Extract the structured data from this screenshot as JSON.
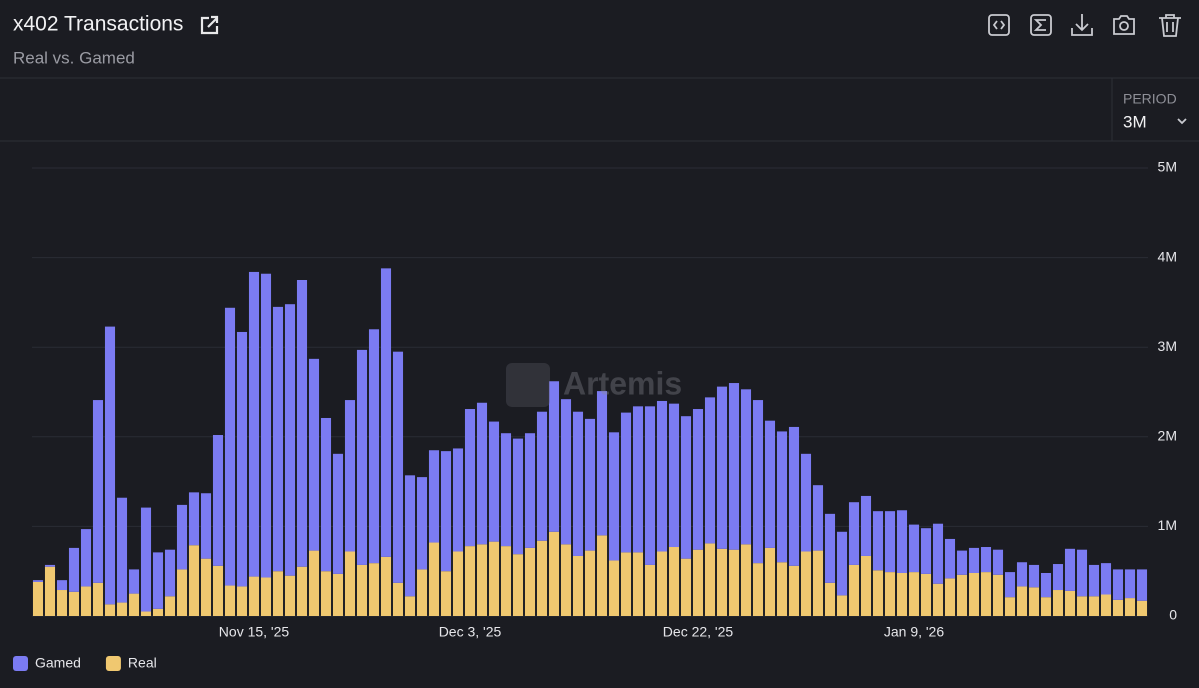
{
  "header": {
    "title": "x402 Transactions",
    "subtitle": "Real vs. Gamed"
  },
  "period": {
    "label": "PERIOD",
    "value": "3M"
  },
  "watermark": "Artemis",
  "chart_data": {
    "type": "bar",
    "stacked": true,
    "categories": [
      null,
      null,
      null,
      null,
      null,
      null,
      null,
      null,
      null,
      null,
      null,
      null,
      null,
      null,
      null,
      null,
      null,
      null,
      "Nov 15, '25",
      null,
      null,
      null,
      null,
      null,
      null,
      null,
      null,
      null,
      null,
      null,
      null,
      null,
      null,
      null,
      null,
      null,
      "Dec 3, '25",
      null,
      null,
      null,
      null,
      null,
      null,
      null,
      null,
      null,
      null,
      null,
      null,
      null,
      null,
      null,
      null,
      null,
      null,
      "Dec 22, '25",
      null,
      null,
      null,
      null,
      null,
      null,
      null,
      null,
      null,
      null,
      null,
      null,
      null,
      null,
      null,
      null,
      null,
      "Jan 9, '26",
      null,
      null,
      null,
      null,
      null,
      null,
      null,
      null,
      null,
      null,
      null,
      null,
      null,
      null,
      null,
      null,
      null,
      null,
      null
    ],
    "series": [
      {
        "name": "Gamed",
        "color": "#7b7bf2",
        "values": [
          0.02,
          0.02,
          0.11,
          0.49,
          0.64,
          2.04,
          3.1,
          1.17,
          0.27,
          1.16,
          0.63,
          0.52,
          0.72,
          0.59,
          0.73,
          1.46,
          3.1,
          2.84,
          3.4,
          3.39,
          2.95,
          3.03,
          3.2,
          2.14,
          1.71,
          1.34,
          1.69,
          2.4,
          2.61,
          3.22,
          2.58,
          1.35,
          1.03,
          1.03,
          1.34,
          1.15,
          1.53,
          1.58,
          1.34,
          1.26,
          1.29,
          1.28,
          1.44,
          1.68,
          1.62,
          1.61,
          1.47,
          1.61,
          1.43,
          1.56,
          1.63,
          1.77,
          1.68,
          1.6,
          1.59,
          1.57,
          1.63,
          1.81,
          1.86,
          1.73,
          1.82,
          1.42,
          1.46,
          1.55,
          1.09,
          0.73,
          0.77,
          0.71,
          0.7,
          0.67,
          0.66,
          0.68,
          0.7,
          0.53,
          0.51,
          0.67,
          0.44,
          0.27,
          0.28,
          0.28,
          0.28,
          0.28,
          0.27,
          0.25,
          0.27,
          0.29,
          0.47,
          0.52,
          0.35,
          0.35,
          0.34,
          0.32,
          0.35
        ]
      },
      {
        "name": "Real",
        "color": "#f0c870",
        "values": [
          0.38,
          0.55,
          0.29,
          0.27,
          0.33,
          0.37,
          0.13,
          0.15,
          0.25,
          0.05,
          0.08,
          0.22,
          0.52,
          0.79,
          0.64,
          0.56,
          0.34,
          0.33,
          0.44,
          0.43,
          0.5,
          0.45,
          0.55,
          0.73,
          0.5,
          0.47,
          0.72,
          0.57,
          0.59,
          0.66,
          0.37,
          0.22,
          0.52,
          0.82,
          0.5,
          0.72,
          0.78,
          0.8,
          0.83,
          0.78,
          0.69,
          0.76,
          0.84,
          0.94,
          0.8,
          0.67,
          0.73,
          0.9,
          0.62,
          0.71,
          0.71,
          0.57,
          0.72,
          0.77,
          0.64,
          0.74,
          0.81,
          0.75,
          0.74,
          0.8,
          0.59,
          0.76,
          0.6,
          0.56,
          0.72,
          0.73,
          0.37,
          0.23,
          0.57,
          0.67,
          0.51,
          0.49,
          0.48,
          0.49,
          0.47,
          0.36,
          0.42,
          0.46,
          0.48,
          0.49,
          0.46,
          0.21,
          0.33,
          0.32,
          0.21,
          0.29,
          0.28,
          0.22,
          0.22,
          0.24,
          0.18,
          0.2,
          0.17
        ]
      }
    ],
    "ylim": [
      0,
      5
    ],
    "yticks": [
      0,
      {
        "value": 1,
        "label": "1M"
      },
      {
        "value": 2,
        "label": "2M"
      },
      {
        "value": 3,
        "label": "3M"
      },
      {
        "value": 4,
        "label": "4M"
      },
      {
        "value": 5,
        "label": "5M"
      }
    ],
    "grid": true,
    "legend": "bottom-left"
  }
}
